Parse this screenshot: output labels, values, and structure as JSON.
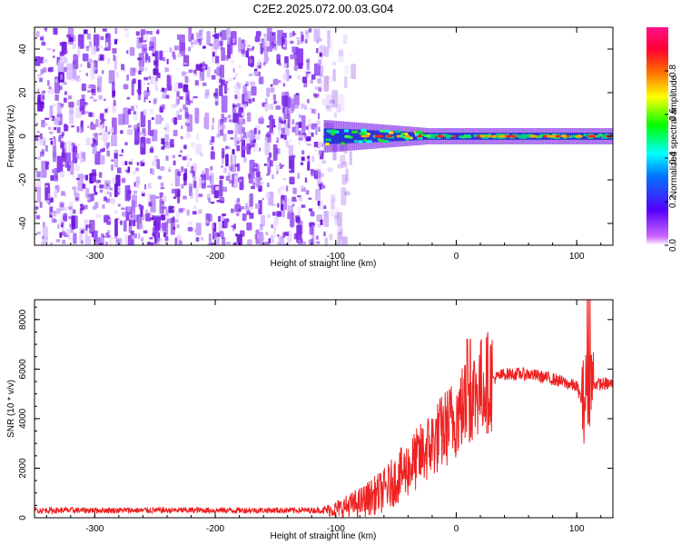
{
  "title": "C2E2.2025.072.00.03.G04",
  "colors": {
    "snr_line": "#ee2222",
    "spectrogram_noise": "#7a22e6",
    "spectrogram_signal": "#00e0a0"
  },
  "colorbar": {
    "label": "Normalized spectral amplitude",
    "ticks": [
      "0.0",
      "0.2",
      "0.4",
      "0.6",
      "0.8"
    ],
    "range": [
      0,
      1
    ],
    "colormap": "rainbow (magenta-blue-cyan-green-yellow-red-magenta)"
  },
  "chart_data": [
    {
      "type": "heatmap",
      "xlabel": "Height of straight line (km)",
      "ylabel": "Frequency (Hz)",
      "xlim": [
        -350,
        130
      ],
      "ylim": [
        -50,
        50
      ],
      "x_ticks": [
        -300,
        -200,
        -100,
        0,
        100
      ],
      "y_ticks": [
        -40,
        -20,
        0,
        20,
        40
      ],
      "description_values": {
        "noise_region_x": [
          -350,
          -110
        ],
        "signal_onset_x": -110,
        "carrier_frequency": 0,
        "signal_region_x": [
          -110,
          130
        ]
      }
    },
    {
      "type": "line",
      "xlabel": "Height of straight line (km)",
      "ylabel": "SNR (10 * v/v)",
      "xlim": [
        -350,
        130
      ],
      "ylim": [
        0,
        8800
      ],
      "x_ticks": [
        -300,
        -200,
        -100,
        0,
        100
      ],
      "y_ticks": [
        0,
        2000,
        4000,
        6000,
        8000
      ],
      "series": [
        {
          "x": [
            -350,
            -300,
            -250,
            -200,
            -150,
            -110,
            -100,
            -80,
            -60,
            -40,
            -20,
            0,
            10,
            20,
            30,
            40,
            60,
            80,
            100,
            105,
            110,
            115,
            120,
            130
          ],
          "y": [
            300,
            300,
            300,
            300,
            300,
            300,
            350,
            600,
            1100,
            2000,
            3000,
            4100,
            4800,
            5300,
            5600,
            5800,
            5800,
            5600,
            5300,
            4600,
            5500,
            5400,
            5400,
            5400
          ]
        }
      ]
    }
  ]
}
